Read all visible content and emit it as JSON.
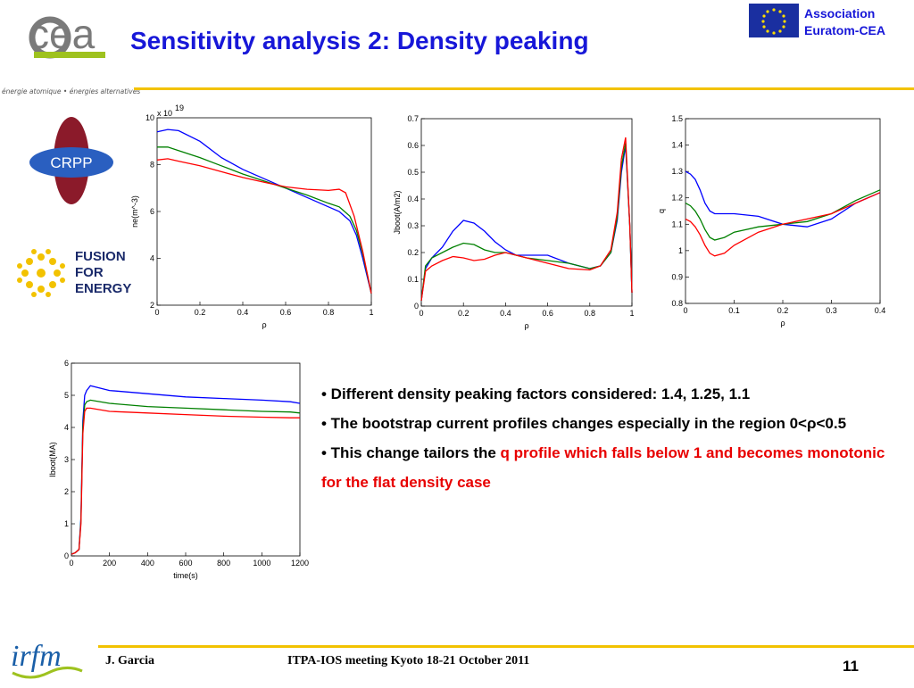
{
  "header": {
    "title": "Sensitivity analysis 2: Density peaking",
    "cea_tagline": "énergie atomique • énergies alternatives",
    "euratom_line1": "Association",
    "euratom_line2": "Euratom-CEA"
  },
  "logos": {
    "crpp": "CRPP",
    "f4e_1": "FUSION",
    "f4e_2": "FOR",
    "f4e_3": "ENERGY",
    "irfm": "irfm",
    "cea": "cea"
  },
  "bullets": {
    "b1": "• Different density peaking factors considered: 1.4, 1.25, 1.1",
    "b2": "• The bootstrap current profiles changes especially in the region 0<ρ<0.5",
    "b3_plain": "• This change tailors the ",
    "b3_red": "q profile which falls below 1 and becomes monotonic for the flat density case"
  },
  "footer": {
    "author": "J. Garcia",
    "meeting": "ITPA-IOS meeting Kyoto 18-21 October 2011",
    "page": "11"
  },
  "colors": {
    "blue": "#0000ff",
    "green": "#008000",
    "red": "#ff0000",
    "title": "#1717d8",
    "rule": "#f2c200"
  },
  "chart_data": [
    {
      "type": "line",
      "ylabel": "ne(m^-3)",
      "xlabel": "ρ",
      "exponent_label": "x 10",
      "exponent": "19",
      "xlim": [
        0,
        1
      ],
      "ylim": [
        2,
        10
      ],
      "xticks": [
        "0",
        "0.2",
        "0.4",
        "0.6",
        "0.8",
        "1"
      ],
      "yticks": [
        "2",
        "4",
        "6",
        "8",
        "10"
      ],
      "series": [
        {
          "color": "blue",
          "x": [
            0,
            0.05,
            0.1,
            0.2,
            0.3,
            0.4,
            0.5,
            0.6,
            0.7,
            0.8,
            0.85,
            0.9,
            0.93,
            0.96,
            1.0
          ],
          "y": [
            9.4,
            9.5,
            9.45,
            9.0,
            8.3,
            7.8,
            7.4,
            7.0,
            6.6,
            6.2,
            6.0,
            5.6,
            5.0,
            4.0,
            2.5
          ]
        },
        {
          "color": "green",
          "x": [
            0,
            0.05,
            0.1,
            0.2,
            0.3,
            0.4,
            0.5,
            0.6,
            0.7,
            0.8,
            0.85,
            0.9,
            0.93,
            0.96,
            1.0
          ],
          "y": [
            8.75,
            8.75,
            8.6,
            8.3,
            7.95,
            7.6,
            7.3,
            7.0,
            6.7,
            6.35,
            6.2,
            5.8,
            5.2,
            4.2,
            2.5
          ]
        },
        {
          "color": "red",
          "x": [
            0,
            0.05,
            0.1,
            0.2,
            0.3,
            0.4,
            0.5,
            0.6,
            0.7,
            0.8,
            0.85,
            0.88,
            0.92,
            0.96,
            1.0
          ],
          "y": [
            8.2,
            8.25,
            8.15,
            7.95,
            7.7,
            7.45,
            7.25,
            7.05,
            6.95,
            6.9,
            6.95,
            6.8,
            5.8,
            4.3,
            2.5
          ]
        }
      ]
    },
    {
      "type": "line",
      "ylabel": "Jboot(A/m2)",
      "xlabel": "ρ",
      "xlim": [
        0,
        1
      ],
      "ylim": [
        0,
        0.7
      ],
      "xticks": [
        "0",
        "0.2",
        "0.4",
        "0.6",
        "0.8",
        "1"
      ],
      "yticks": [
        "0",
        "0.1",
        "0.2",
        "0.3",
        "0.4",
        "0.5",
        "0.6",
        "0.7"
      ],
      "series": [
        {
          "color": "blue",
          "x": [
            0,
            0.02,
            0.05,
            0.1,
            0.15,
            0.2,
            0.25,
            0.3,
            0.35,
            0.4,
            0.45,
            0.5,
            0.6,
            0.7,
            0.8,
            0.85,
            0.9,
            0.93,
            0.95,
            0.97,
            0.99,
            1.0
          ],
          "y": [
            0.02,
            0.14,
            0.18,
            0.22,
            0.28,
            0.32,
            0.31,
            0.28,
            0.24,
            0.21,
            0.19,
            0.19,
            0.19,
            0.16,
            0.14,
            0.15,
            0.2,
            0.32,
            0.5,
            0.6,
            0.3,
            0.05
          ]
        },
        {
          "color": "green",
          "x": [
            0,
            0.02,
            0.05,
            0.1,
            0.15,
            0.2,
            0.25,
            0.3,
            0.35,
            0.4,
            0.45,
            0.5,
            0.6,
            0.7,
            0.8,
            0.85,
            0.9,
            0.93,
            0.95,
            0.97,
            0.99,
            1.0
          ],
          "y": [
            0.02,
            0.15,
            0.18,
            0.2,
            0.22,
            0.235,
            0.23,
            0.21,
            0.2,
            0.2,
            0.19,
            0.18,
            0.17,
            0.16,
            0.14,
            0.15,
            0.2,
            0.33,
            0.52,
            0.61,
            0.3,
            0.05
          ]
        },
        {
          "color": "red",
          "x": [
            0,
            0.02,
            0.05,
            0.1,
            0.15,
            0.2,
            0.25,
            0.3,
            0.35,
            0.4,
            0.45,
            0.5,
            0.6,
            0.7,
            0.8,
            0.85,
            0.9,
            0.93,
            0.95,
            0.97,
            0.99,
            1.0
          ],
          "y": [
            0.02,
            0.13,
            0.15,
            0.17,
            0.185,
            0.18,
            0.17,
            0.175,
            0.19,
            0.2,
            0.19,
            0.18,
            0.16,
            0.14,
            0.135,
            0.15,
            0.21,
            0.35,
            0.55,
            0.63,
            0.3,
            0.05
          ]
        }
      ]
    },
    {
      "type": "line",
      "ylabel": "q",
      "xlabel": "ρ",
      "xlim": [
        0,
        0.4
      ],
      "ylim": [
        0.8,
        1.5
      ],
      "xticks": [
        "0",
        "0.1",
        "0.2",
        "0.3",
        "0.4"
      ],
      "yticks": [
        "0.8",
        "0.9",
        "1",
        "1.1",
        "1.2",
        "1.3",
        "1.4",
        "1.5"
      ],
      "series": [
        {
          "color": "blue",
          "x": [
            0,
            0.01,
            0.02,
            0.03,
            0.04,
            0.05,
            0.06,
            0.08,
            0.1,
            0.15,
            0.2,
            0.25,
            0.3,
            0.35,
            0.4
          ],
          "y": [
            1.3,
            1.29,
            1.27,
            1.23,
            1.18,
            1.15,
            1.14,
            1.14,
            1.14,
            1.13,
            1.1,
            1.09,
            1.12,
            1.18,
            1.22
          ]
        },
        {
          "color": "green",
          "x": [
            0,
            0.01,
            0.02,
            0.03,
            0.04,
            0.05,
            0.06,
            0.08,
            0.1,
            0.15,
            0.2,
            0.25,
            0.3,
            0.35,
            0.4
          ],
          "y": [
            1.18,
            1.17,
            1.15,
            1.12,
            1.08,
            1.05,
            1.04,
            1.05,
            1.07,
            1.09,
            1.1,
            1.11,
            1.14,
            1.19,
            1.23
          ]
        },
        {
          "color": "red",
          "x": [
            0,
            0.01,
            0.02,
            0.03,
            0.04,
            0.05,
            0.06,
            0.08,
            0.1,
            0.15,
            0.2,
            0.25,
            0.3,
            0.35,
            0.4
          ],
          "y": [
            1.12,
            1.11,
            1.09,
            1.06,
            1.02,
            0.99,
            0.98,
            0.99,
            1.02,
            1.07,
            1.1,
            1.12,
            1.14,
            1.18,
            1.22
          ]
        }
      ]
    },
    {
      "type": "line",
      "ylabel": "Iboot(MA)",
      "xlabel": "time(s)",
      "xlim": [
        0,
        1200
      ],
      "ylim": [
        0,
        6
      ],
      "xticks": [
        "0",
        "200",
        "400",
        "600",
        "800",
        "1000",
        "1200"
      ],
      "yticks": [
        "0",
        "1",
        "2",
        "3",
        "4",
        "5",
        "6"
      ],
      "series": [
        {
          "color": "blue",
          "x": [
            0,
            20,
            40,
            50,
            60,
            70,
            80,
            100,
            200,
            400,
            600,
            800,
            1000,
            1150,
            1200
          ],
          "y": [
            0.05,
            0.1,
            0.2,
            1.2,
            4.2,
            5.0,
            5.15,
            5.3,
            5.15,
            5.05,
            4.95,
            4.9,
            4.85,
            4.8,
            4.75
          ]
        },
        {
          "color": "green",
          "x": [
            0,
            20,
            40,
            50,
            60,
            70,
            80,
            100,
            200,
            400,
            600,
            800,
            1000,
            1150,
            1200
          ],
          "y": [
            0.05,
            0.1,
            0.2,
            1.1,
            4.0,
            4.7,
            4.8,
            4.85,
            4.75,
            4.65,
            4.6,
            4.55,
            4.5,
            4.48,
            4.45
          ]
        },
        {
          "color": "red",
          "x": [
            0,
            20,
            40,
            50,
            60,
            70,
            80,
            100,
            200,
            400,
            600,
            800,
            1000,
            1150,
            1200
          ],
          "y": [
            0.05,
            0.1,
            0.2,
            1.0,
            3.8,
            4.5,
            4.6,
            4.6,
            4.5,
            4.45,
            4.4,
            4.35,
            4.32,
            4.3,
            4.3
          ]
        }
      ]
    }
  ]
}
